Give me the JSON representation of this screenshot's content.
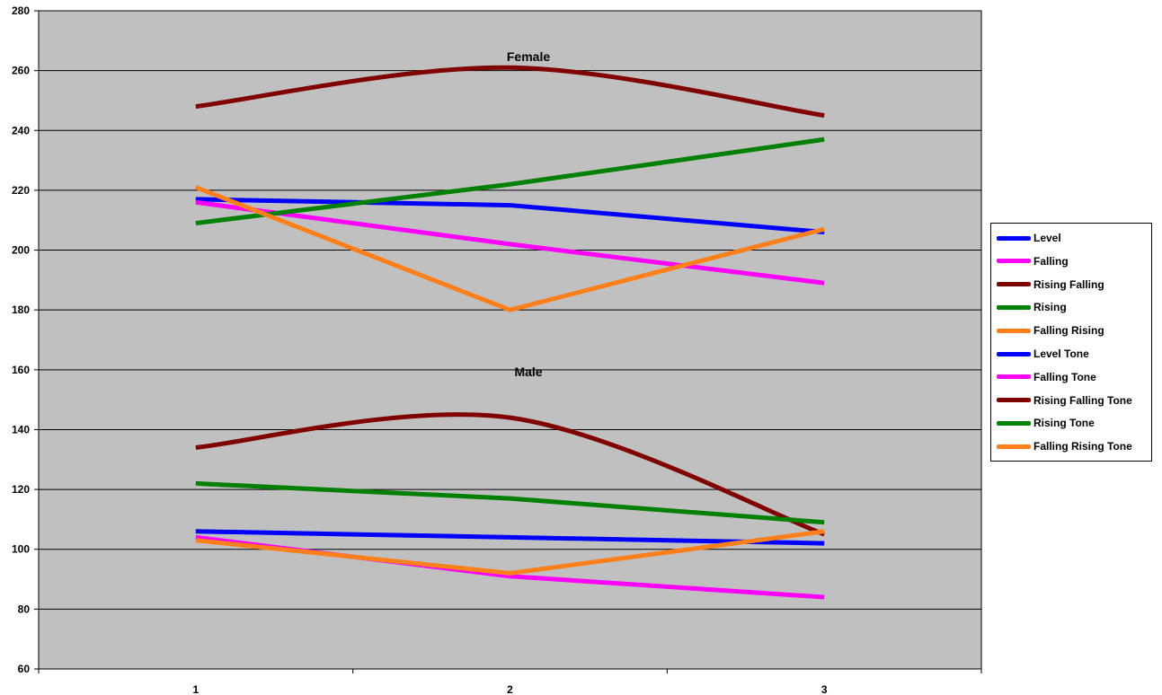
{
  "chart_data": {
    "type": "line",
    "categories": [
      "1",
      "2",
      "3"
    ],
    "ylim": [
      60,
      280
    ],
    "yticks": [
      60,
      80,
      100,
      120,
      140,
      160,
      180,
      200,
      220,
      240,
      260,
      280
    ],
    "grid": true,
    "legend_position": "right",
    "annotations": [
      "Female",
      "Male"
    ],
    "series": [
      {
        "name": "Level",
        "color": "#0000ff",
        "values": [
          217,
          215,
          206
        ],
        "smooth": false
      },
      {
        "name": "Falling",
        "color": "#ff00ff",
        "values": [
          216,
          202,
          189
        ],
        "smooth": false
      },
      {
        "name": "Rising Falling",
        "color": "#800000",
        "values": [
          248,
          261,
          245
        ],
        "smooth": true
      },
      {
        "name": "Rising",
        "color": "#008000",
        "values": [
          209,
          222,
          237
        ],
        "smooth": false
      },
      {
        "name": "Falling Rising",
        "color": "#ff7f1a",
        "values": [
          221,
          180,
          207
        ],
        "smooth": false
      },
      {
        "name": "Level Tone",
        "color": "#0000ff",
        "values": [
          106,
          104,
          102
        ],
        "smooth": false
      },
      {
        "name": "Falling Tone",
        "color": "#ff00ff",
        "values": [
          104,
          91,
          84
        ],
        "smooth": false
      },
      {
        "name": "Rising Falling Tone",
        "color": "#800000",
        "values": [
          134,
          144,
          105
        ],
        "smooth": true
      },
      {
        "name": "Rising Tone",
        "color": "#008000",
        "values": [
          122,
          117,
          109
        ],
        "smooth": false
      },
      {
        "name": "Falling Rising Tone",
        "color": "#ff7f1a",
        "values": [
          103,
          92,
          106
        ],
        "smooth": false
      }
    ]
  }
}
